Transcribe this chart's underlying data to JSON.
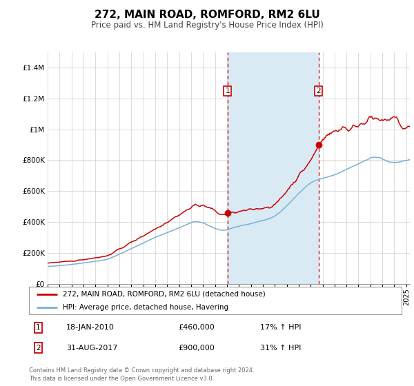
{
  "title": "272, MAIN ROAD, ROMFORD, RM2 6LU",
  "subtitle": "Price paid vs. HM Land Registry's House Price Index (HPI)",
  "red_label": "272, MAIN ROAD, ROMFORD, RM2 6LU (detached house)",
  "blue_label": "HPI: Average price, detached house, Havering",
  "red_color": "#cc0000",
  "blue_color": "#7aafd4",
  "shade_color": "#daeaf5",
  "transaction1_date": 2010.05,
  "transaction1_price": 460000,
  "transaction1_label": "18-JAN-2010",
  "transaction1_pct": "17%",
  "transaction2_date": 2017.67,
  "transaction2_price": 900000,
  "transaction2_label": "31-AUG-2017",
  "transaction2_pct": "31%",
  "ylim": [
    0,
    1500000
  ],
  "yticks": [
    0,
    200000,
    400000,
    600000,
    800000,
    1000000,
    1200000,
    1400000
  ],
  "footer": "Contains HM Land Registry data © Crown copyright and database right 2024.\nThis data is licensed under the Open Government Licence v3.0.",
  "bg_color": "#ffffff",
  "grid_color": "#cccccc",
  "title_fontsize": 11,
  "subtitle_fontsize": 8.5,
  "axis_fontsize": 7.5
}
